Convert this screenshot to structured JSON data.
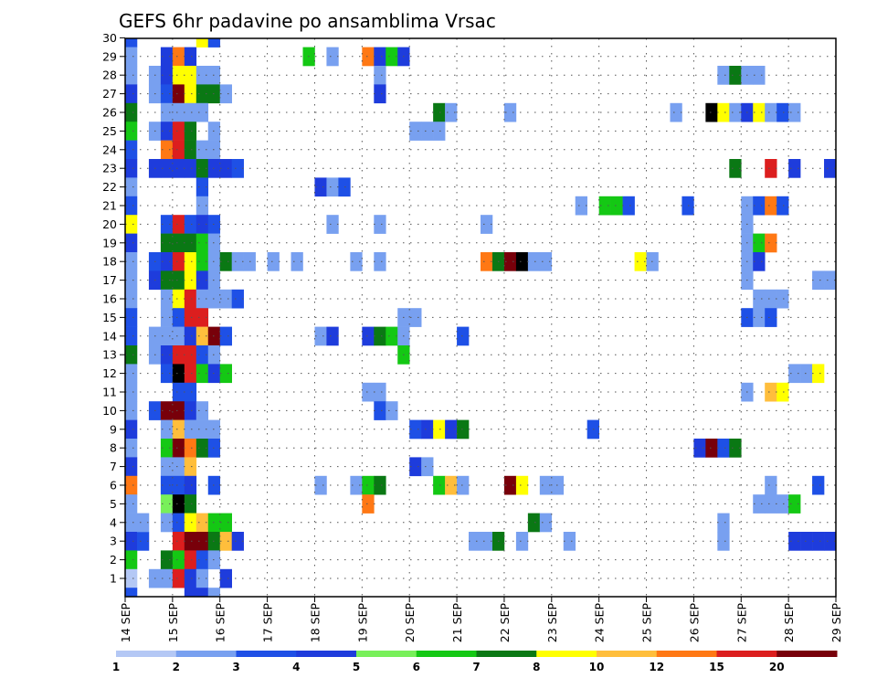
{
  "chart_data": {
    "type": "heatmap",
    "title": "GEFS 6hr padavine po ansamblima Vrsac",
    "xlabel": "",
    "ylabel": "",
    "x_tick_labels": [
      "14 SEP",
      "15 SEP",
      "16 SEP",
      "17 SEP",
      "18 SEP",
      "19 SEP",
      "20 SEP",
      "21 SEP",
      "22 SEP",
      "23 SEP",
      "24 SEP",
      "25 SEP",
      "26 SEP",
      "27 SEP",
      "28 SEP",
      "29 SEP"
    ],
    "y_tick_labels": [
      "1",
      "2",
      "3",
      "4",
      "5",
      "6",
      "7",
      "8",
      "9",
      "10",
      "11",
      "12",
      "13",
      "14",
      "15",
      "16",
      "17",
      "18",
      "19",
      "20",
      "21",
      "22",
      "23",
      "24",
      "25",
      "26",
      "27",
      "28",
      "29",
      "30"
    ],
    "xlim": [
      0,
      60
    ],
    "ylim": [
      0,
      30
    ],
    "grid": true,
    "colorbar": {
      "placement": "bottom",
      "levels": [
        "1",
        "2",
        "3",
        "4",
        "5",
        "6",
        "7",
        "8",
        "10",
        "12",
        "15",
        "20"
      ],
      "colors": [
        "#b4c8f5",
        "#78a0f0",
        "#1e50e6",
        "#1e3cdc",
        "#78f05a",
        "#14c814",
        "#0a7814",
        "#ffff00",
        "#ffbe3c",
        "#ff7814",
        "#dc1e1e",
        "#78000a"
      ]
    },
    "cells": [
      [
        0,
        30,
        2
      ],
      [
        0,
        29,
        1
      ],
      [
        0,
        28,
        1
      ],
      [
        0,
        27,
        3
      ],
      [
        0,
        26,
        6
      ],
      [
        0,
        25,
        5
      ],
      [
        0,
        24,
        2
      ],
      [
        0,
        23,
        3
      ],
      [
        0,
        22,
        1
      ],
      [
        0,
        21,
        2
      ],
      [
        0,
        20,
        7
      ],
      [
        0,
        19,
        3
      ],
      [
        0,
        18,
        1
      ],
      [
        0,
        17,
        1
      ],
      [
        0,
        16,
        1
      ],
      [
        0,
        15,
        2
      ],
      [
        0,
        14,
        2
      ],
      [
        0,
        13,
        6
      ],
      [
        0,
        12,
        1
      ],
      [
        0,
        11,
        1
      ],
      [
        0,
        10,
        1
      ],
      [
        0,
        9,
        3
      ],
      [
        0,
        8,
        1
      ],
      [
        0,
        7,
        3
      ],
      [
        0,
        6,
        9
      ],
      [
        0,
        5,
        1
      ],
      [
        0,
        4,
        1
      ],
      [
        0,
        3,
        3
      ],
      [
        0,
        2,
        5
      ],
      [
        0,
        1,
        0
      ],
      [
        0,
        0,
        2
      ],
      [
        1,
        3,
        2
      ],
      [
        1,
        4,
        1
      ],
      [
        2,
        28,
        1
      ],
      [
        2,
        27,
        1
      ],
      [
        2,
        25,
        1
      ],
      [
        2,
        23,
        3
      ],
      [
        2,
        18,
        2
      ],
      [
        2,
        17,
        3
      ],
      [
        2,
        14,
        1
      ],
      [
        2,
        13,
        1
      ],
      [
        2,
        10,
        2
      ],
      [
        2,
        1,
        1
      ],
      [
        3,
        29,
        3
      ],
      [
        3,
        28,
        3
      ],
      [
        3,
        27,
        2
      ],
      [
        3,
        26,
        1
      ],
      [
        3,
        25,
        3
      ],
      [
        3,
        24,
        9
      ],
      [
        3,
        23,
        3
      ],
      [
        3,
        20,
        2
      ],
      [
        3,
        19,
        6
      ],
      [
        3,
        18,
        3
      ],
      [
        3,
        17,
        6
      ],
      [
        3,
        16,
        1
      ],
      [
        3,
        15,
        1
      ],
      [
        3,
        14,
        1
      ],
      [
        3,
        13,
        3
      ],
      [
        3,
        12,
        2
      ],
      [
        3,
        10,
        11
      ],
      [
        3,
        9,
        1
      ],
      [
        3,
        8,
        5
      ],
      [
        3,
        7,
        1
      ],
      [
        3,
        6,
        2
      ],
      [
        3,
        5,
        4
      ],
      [
        3,
        4,
        1
      ],
      [
        3,
        2,
        6
      ],
      [
        3,
        1,
        1
      ],
      [
        4,
        29,
        9
      ],
      [
        4,
        28,
        7
      ],
      [
        4,
        27,
        11
      ],
      [
        4,
        26,
        1
      ],
      [
        4,
        25,
        10
      ],
      [
        4,
        24,
        10
      ],
      [
        4,
        23,
        3
      ],
      [
        4,
        20,
        10
      ],
      [
        4,
        19,
        6
      ],
      [
        4,
        18,
        10
      ],
      [
        4,
        17,
        6
      ],
      [
        4,
        16,
        7
      ],
      [
        4,
        15,
        2
      ],
      [
        4,
        14,
        1
      ],
      [
        4,
        13,
        10
      ],
      [
        4,
        12,
        12
      ],
      [
        4,
        11,
        2
      ],
      [
        4,
        10,
        11
      ],
      [
        4,
        9,
        8
      ],
      [
        4,
        8,
        11
      ],
      [
        4,
        7,
        1
      ],
      [
        4,
        6,
        2
      ],
      [
        4,
        5,
        12
      ],
      [
        4,
        4,
        2
      ],
      [
        4,
        3,
        10
      ],
      [
        4,
        2,
        5
      ],
      [
        4,
        1,
        10
      ],
      [
        5,
        29,
        3
      ],
      [
        5,
        28,
        7
      ],
      [
        5,
        27,
        7
      ],
      [
        5,
        26,
        1
      ],
      [
        5,
        25,
        6
      ],
      [
        5,
        24,
        6
      ],
      [
        5,
        23,
        3
      ],
      [
        5,
        20,
        2
      ],
      [
        5,
        19,
        6
      ],
      [
        5,
        18,
        7
      ],
      [
        5,
        17,
        7
      ],
      [
        5,
        16,
        10
      ],
      [
        5,
        15,
        10
      ],
      [
        5,
        14,
        3
      ],
      [
        5,
        13,
        10
      ],
      [
        5,
        12,
        10
      ],
      [
        5,
        11,
        2
      ],
      [
        5,
        10,
        3
      ],
      [
        5,
        9,
        1
      ],
      [
        5,
        8,
        9
      ],
      [
        5,
        7,
        8
      ],
      [
        5,
        6,
        3
      ],
      [
        5,
        5,
        6
      ],
      [
        5,
        4,
        7
      ],
      [
        5,
        3,
        11
      ],
      [
        5,
        2,
        10
      ],
      [
        5,
        1,
        3
      ],
      [
        5,
        0,
        3
      ],
      [
        6,
        30,
        7
      ],
      [
        6,
        28,
        1
      ],
      [
        6,
        27,
        6
      ],
      [
        6,
        26,
        1
      ],
      [
        6,
        24,
        1
      ],
      [
        6,
        23,
        6
      ],
      [
        6,
        22,
        2
      ],
      [
        6,
        21,
        1
      ],
      [
        6,
        20,
        3
      ],
      [
        6,
        19,
        5
      ],
      [
        6,
        18,
        5
      ],
      [
        6,
        17,
        3
      ],
      [
        6,
        16,
        1
      ],
      [
        6,
        15,
        10
      ],
      [
        6,
        14,
        8
      ],
      [
        6,
        13,
        2
      ],
      [
        6,
        12,
        5
      ],
      [
        6,
        10,
        1
      ],
      [
        6,
        9,
        1
      ],
      [
        6,
        8,
        6
      ],
      [
        6,
        4,
        8
      ],
      [
        6,
        3,
        11
      ],
      [
        6,
        2,
        2
      ],
      [
        6,
        1,
        1
      ],
      [
        6,
        0,
        3
      ],
      [
        7,
        30,
        2
      ],
      [
        7,
        28,
        1
      ],
      [
        7,
        27,
        6
      ],
      [
        7,
        25,
        1
      ],
      [
        7,
        24,
        1
      ],
      [
        7,
        23,
        3
      ],
      [
        7,
        20,
        2
      ],
      [
        7,
        19,
        1
      ],
      [
        7,
        18,
        1
      ],
      [
        7,
        17,
        1
      ],
      [
        7,
        16,
        1
      ],
      [
        7,
        14,
        11
      ],
      [
        7,
        13,
        1
      ],
      [
        7,
        12,
        3
      ],
      [
        7,
        9,
        1
      ],
      [
        7,
        8,
        2
      ],
      [
        7,
        6,
        2
      ],
      [
        7,
        4,
        5
      ],
      [
        7,
        3,
        6
      ],
      [
        7,
        2,
        1
      ],
      [
        7,
        0,
        1
      ],
      [
        8,
        27,
        1
      ],
      [
        8,
        23,
        3
      ],
      [
        8,
        18,
        6
      ],
      [
        8,
        16,
        1
      ],
      [
        8,
        14,
        2
      ],
      [
        8,
        12,
        5
      ],
      [
        8,
        4,
        5
      ],
      [
        8,
        3,
        8
      ],
      [
        8,
        1,
        3
      ],
      [
        9,
        23,
        2
      ],
      [
        9,
        18,
        1
      ],
      [
        9,
        16,
        2
      ],
      [
        9,
        3,
        3
      ],
      [
        10,
        18,
        1
      ],
      [
        12,
        18,
        1
      ],
      [
        14,
        18,
        1
      ],
      [
        15,
        29,
        5
      ],
      [
        16,
        22,
        3
      ],
      [
        16,
        14,
        1
      ],
      [
        16,
        6,
        1
      ],
      [
        17,
        29,
        1
      ],
      [
        17,
        22,
        1
      ],
      [
        17,
        20,
        1
      ],
      [
        17,
        14,
        3
      ],
      [
        18,
        22,
        2
      ],
      [
        19,
        18,
        1
      ],
      [
        19,
        6,
        1
      ],
      [
        20,
        29,
        9
      ],
      [
        20,
        14,
        3
      ],
      [
        20,
        11,
        1
      ],
      [
        20,
        6,
        5
      ],
      [
        20,
        5,
        9
      ],
      [
        21,
        29,
        3
      ],
      [
        21,
        28,
        1
      ],
      [
        21,
        27,
        3
      ],
      [
        21,
        20,
        1
      ],
      [
        21,
        18,
        1
      ],
      [
        21,
        14,
        6
      ],
      [
        21,
        11,
        1
      ],
      [
        21,
        10,
        2
      ],
      [
        21,
        6,
        6
      ],
      [
        22,
        29,
        5
      ],
      [
        22,
        14,
        5
      ],
      [
        22,
        10,
        1
      ],
      [
        23,
        29,
        3
      ],
      [
        23,
        15,
        1
      ],
      [
        23,
        14,
        1
      ],
      [
        23,
        13,
        5
      ],
      [
        24,
        25,
        1
      ],
      [
        24,
        15,
        1
      ],
      [
        24,
        9,
        2
      ],
      [
        24,
        7,
        3
      ],
      [
        25,
        25,
        1
      ],
      [
        25,
        9,
        3
      ],
      [
        25,
        7,
        1
      ],
      [
        26,
        26,
        6
      ],
      [
        26,
        25,
        1
      ],
      [
        26,
        9,
        7
      ],
      [
        26,
        6,
        5
      ],
      [
        27,
        26,
        1
      ],
      [
        27,
        9,
        3
      ],
      [
        27,
        6,
        8
      ],
      [
        28,
        14,
        2
      ],
      [
        28,
        9,
        6
      ],
      [
        28,
        6,
        1
      ],
      [
        29,
        3,
        1
      ],
      [
        30,
        20,
        1
      ],
      [
        30,
        18,
        9
      ],
      [
        30,
        3,
        1
      ],
      [
        31,
        18,
        6
      ],
      [
        31,
        3,
        6
      ],
      [
        32,
        26,
        1
      ],
      [
        32,
        18,
        11
      ],
      [
        32,
        6,
        11
      ],
      [
        33,
        18,
        12
      ],
      [
        33,
        6,
        7
      ],
      [
        33,
        3,
        1
      ],
      [
        34,
        18,
        1
      ],
      [
        34,
        4,
        6
      ],
      [
        35,
        18,
        1
      ],
      [
        35,
        6,
        1
      ],
      [
        35,
        4,
        1
      ],
      [
        36,
        6,
        1
      ],
      [
        37,
        3,
        1
      ],
      [
        38,
        21,
        1
      ],
      [
        39,
        9,
        2
      ],
      [
        40,
        21,
        5
      ],
      [
        41,
        21,
        5
      ],
      [
        42,
        21,
        2
      ],
      [
        43,
        18,
        7
      ],
      [
        44,
        18,
        1
      ],
      [
        46,
        26,
        1
      ],
      [
        47,
        21,
        2
      ],
      [
        48,
        8,
        3
      ],
      [
        49,
        26,
        12
      ],
      [
        49,
        8,
        11
      ],
      [
        50,
        28,
        1
      ],
      [
        50,
        26,
        7
      ],
      [
        50,
        8,
        2
      ],
      [
        50,
        4,
        1
      ],
      [
        50,
        3,
        1
      ],
      [
        51,
        28,
        6
      ],
      [
        51,
        26,
        1
      ],
      [
        51,
        23,
        6
      ],
      [
        51,
        8,
        6
      ],
      [
        52,
        28,
        1
      ],
      [
        52,
        26,
        3
      ],
      [
        52,
        21,
        1
      ],
      [
        52,
        20,
        1
      ],
      [
        52,
        19,
        1
      ],
      [
        52,
        18,
        1
      ],
      [
        52,
        17,
        1
      ],
      [
        52,
        15,
        2
      ],
      [
        52,
        11,
        1
      ],
      [
        53,
        28,
        1
      ],
      [
        53,
        26,
        7
      ],
      [
        53,
        21,
        2
      ],
      [
        53,
        19,
        5
      ],
      [
        53,
        18,
        3
      ],
      [
        53,
        16,
        1
      ],
      [
        53,
        15,
        1
      ],
      [
        53,
        5,
        1
      ],
      [
        54,
        26,
        1
      ],
      [
        54,
        23,
        10
      ],
      [
        54,
        21,
        9
      ],
      [
        54,
        19,
        9
      ],
      [
        54,
        16,
        1
      ],
      [
        54,
        15,
        2
      ],
      [
        54,
        11,
        8
      ],
      [
        54,
        6,
        1
      ],
      [
        54,
        5,
        1
      ],
      [
        55,
        26,
        2
      ],
      [
        55,
        21,
        2
      ],
      [
        55,
        16,
        1
      ],
      [
        55,
        11,
        7
      ],
      [
        55,
        5,
        1
      ],
      [
        56,
        26,
        1
      ],
      [
        56,
        23,
        3
      ],
      [
        56,
        12,
        1
      ],
      [
        56,
        5,
        5
      ],
      [
        56,
        3,
        3
      ],
      [
        57,
        12,
        1
      ],
      [
        57,
        3,
        3
      ],
      [
        58,
        17,
        1
      ],
      [
        58,
        12,
        7
      ],
      [
        58,
        6,
        2
      ],
      [
        58,
        3,
        3
      ],
      [
        59,
        23,
        3
      ],
      [
        59,
        17,
        1
      ],
      [
        59,
        3,
        3
      ],
      [
        60,
        23,
        9
      ],
      [
        60,
        17,
        1
      ],
      [
        60,
        3,
        3
      ],
      [
        61,
        23,
        6
      ],
      [
        62,
        29,
        2
      ],
      [
        62,
        24,
        1
      ],
      [
        62,
        23,
        1
      ],
      [
        62,
        20,
        3
      ],
      [
        63,
        24,
        1
      ],
      [
        63,
        23,
        9
      ],
      [
        64,
        27,
        1
      ],
      [
        64,
        24,
        9
      ],
      [
        64,
        23,
        6
      ],
      [
        64,
        20,
        3
      ],
      [
        64,
        2,
        1
      ],
      [
        65,
        29,
        9
      ],
      [
        65,
        28,
        1
      ],
      [
        65,
        24,
        2
      ],
      [
        65,
        23,
        6
      ],
      [
        65,
        20,
        1
      ],
      [
        65,
        6,
        1
      ],
      [
        66,
        29,
        1
      ],
      [
        66,
        28,
        1
      ],
      [
        66,
        24,
        2
      ],
      [
        66,
        23,
        9
      ],
      [
        66,
        20,
        3
      ],
      [
        66,
        5,
        1
      ],
      [
        67,
        28,
        2
      ],
      [
        67,
        24,
        3
      ],
      [
        67,
        20,
        9
      ],
      [
        67,
        2,
        2
      ],
      [
        67,
        1,
        1
      ],
      [
        68,
        24,
        7
      ],
      [
        68,
        21,
        1
      ],
      [
        68,
        8,
        10
      ],
      [
        68,
        2,
        3
      ],
      [
        69,
        20,
        1
      ],
      [
        69,
        8,
        9
      ],
      [
        69,
        6,
        1
      ],
      [
        70,
        20,
        2
      ],
      [
        70,
        8,
        3
      ],
      [
        70,
        6,
        1
      ],
      [
        71,
        20,
        12
      ],
      [
        71,
        8,
        3
      ],
      [
        71,
        6,
        1
      ],
      [
        72,
        20,
        2
      ],
      [
        72,
        8,
        3
      ],
      [
        72,
        6,
        3
      ],
      [
        72,
        5,
        7
      ],
      [
        72,
        1,
        1
      ]
    ]
  }
}
